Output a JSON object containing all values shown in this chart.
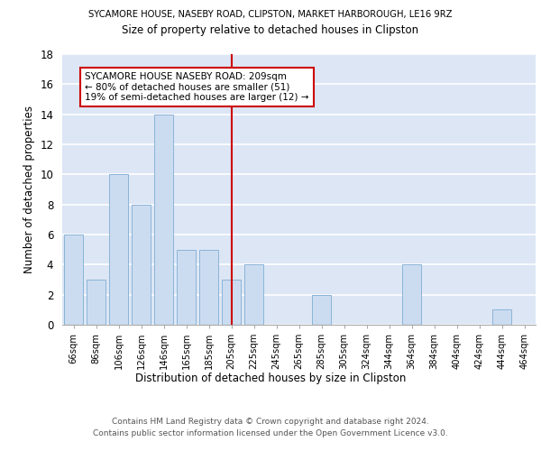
{
  "title1": "SYCAMORE HOUSE, NASEBY ROAD, CLIPSTON, MARKET HARBOROUGH, LE16 9RZ",
  "title2": "Size of property relative to detached houses in Clipston",
  "xlabel": "Distribution of detached houses by size in Clipston",
  "ylabel": "Number of detached properties",
  "categories": [
    "66sqm",
    "86sqm",
    "106sqm",
    "126sqm",
    "146sqm",
    "165sqm",
    "185sqm",
    "205sqm",
    "225sqm",
    "245sqm",
    "265sqm",
    "285sqm",
    "305sqm",
    "324sqm",
    "344sqm",
    "364sqm",
    "384sqm",
    "404sqm",
    "424sqm",
    "444sqm",
    "464sqm"
  ],
  "values": [
    6,
    3,
    10,
    8,
    14,
    5,
    5,
    3,
    4,
    0,
    0,
    2,
    0,
    0,
    0,
    4,
    0,
    0,
    0,
    1,
    0
  ],
  "bar_color": "#ccdcf0",
  "bar_edge_color": "#8ab4d8",
  "background_color": "#dce6f5",
  "grid_color": "#ffffff",
  "annotation_text_line1": "SYCAMORE HOUSE NASEBY ROAD: 209sqm",
  "annotation_text_line2": "← 80% of detached houses are smaller (51)",
  "annotation_text_line3": "19% of semi-detached houses are larger (12) →",
  "annotation_box_color": "#ffffff",
  "annotation_box_edge": "#cc0000",
  "vline_color": "#cc0000",
  "vline_x": 7.0,
  "ylim": [
    0,
    18
  ],
  "yticks": [
    0,
    2,
    4,
    6,
    8,
    10,
    12,
    14,
    16,
    18
  ],
  "footer1": "Contains HM Land Registry data © Crown copyright and database right 2024.",
  "footer2": "Contains public sector information licensed under the Open Government Licence v3.0."
}
